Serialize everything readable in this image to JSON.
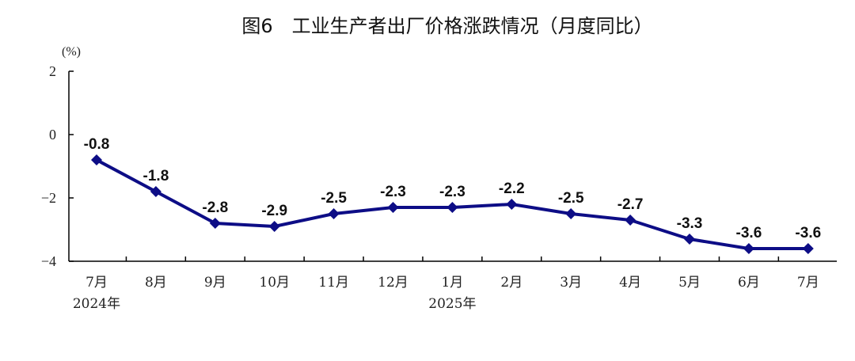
{
  "chart_data": {
    "type": "line",
    "title": "图6　工业生产者出厂价格涨跌情况（月度同比）",
    "unit_label": "(%)",
    "categories": [
      "7月",
      "8月",
      "9月",
      "10月",
      "11月",
      "12月",
      "1月",
      "2月",
      "3月",
      "4月",
      "5月",
      "6月",
      "7月"
    ],
    "year_labels": [
      {
        "index": 0,
        "label": "2024年"
      },
      {
        "index": 6,
        "label": "2025年"
      }
    ],
    "values": [
      -0.8,
      -1.8,
      -2.8,
      -2.9,
      -2.5,
      -2.3,
      -2.3,
      -2.2,
      -2.5,
      -2.7,
      -3.3,
      -3.6,
      -3.6
    ],
    "data_labels": [
      "-0.8",
      "-1.8",
      "-2.8",
      "-2.9",
      "-2.5",
      "-2.3",
      "-2.3",
      "-2.2",
      "-2.5",
      "-2.7",
      "-3.3",
      "-3.6",
      "-3.6"
    ],
    "ylim": [
      -4,
      2
    ],
    "yticks": [
      2,
      0,
      -2,
      -4
    ],
    "ytick_labels": [
      "2",
      "0",
      "−2",
      "−4"
    ],
    "series_color": "#0d0d86",
    "grid": false,
    "legend": "none"
  }
}
